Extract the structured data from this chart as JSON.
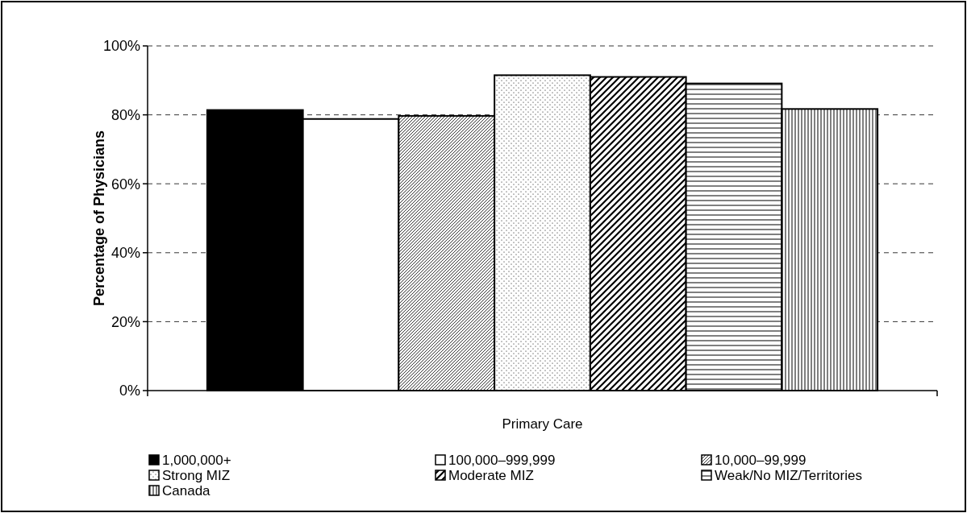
{
  "chart_data": {
    "type": "bar",
    "ylabel": "Percentage of Physicians",
    "categories": [
      "Primary Care"
    ],
    "series": [
      {
        "name": "1,000,000+",
        "color": "#000000",
        "values": [
          81.4
        ]
      },
      {
        "name": "100,000–999,999",
        "color": "#ffffff",
        "values": [
          78.8
        ]
      },
      {
        "name": "10,000–99,999",
        "color": "#000000",
        "values": [
          79.7
        ]
      },
      {
        "name": "Strong MIZ",
        "color": "#000000",
        "values": [
          91.5
        ]
      },
      {
        "name": "Moderate MIZ",
        "color": "#000000",
        "values": [
          91.0
        ]
      },
      {
        "name": "Weak/No MIZ/Territories",
        "color": "#000000",
        "values": [
          89.1
        ]
      },
      {
        "name": "Canada",
        "color": "#000000",
        "values": [
          81.7
        ]
      }
    ],
    "ylim": [
      0,
      100
    ],
    "yticks": [
      {
        "value": 0,
        "label": "0%"
      },
      {
        "value": 20,
        "label": "20%"
      },
      {
        "value": 40,
        "label": "40%"
      },
      {
        "value": 60,
        "label": "60%"
      },
      {
        "value": 80,
        "label": "80%"
      },
      {
        "value": 100,
        "label": "100%"
      }
    ],
    "grid": "y",
    "legend": "bottom"
  }
}
